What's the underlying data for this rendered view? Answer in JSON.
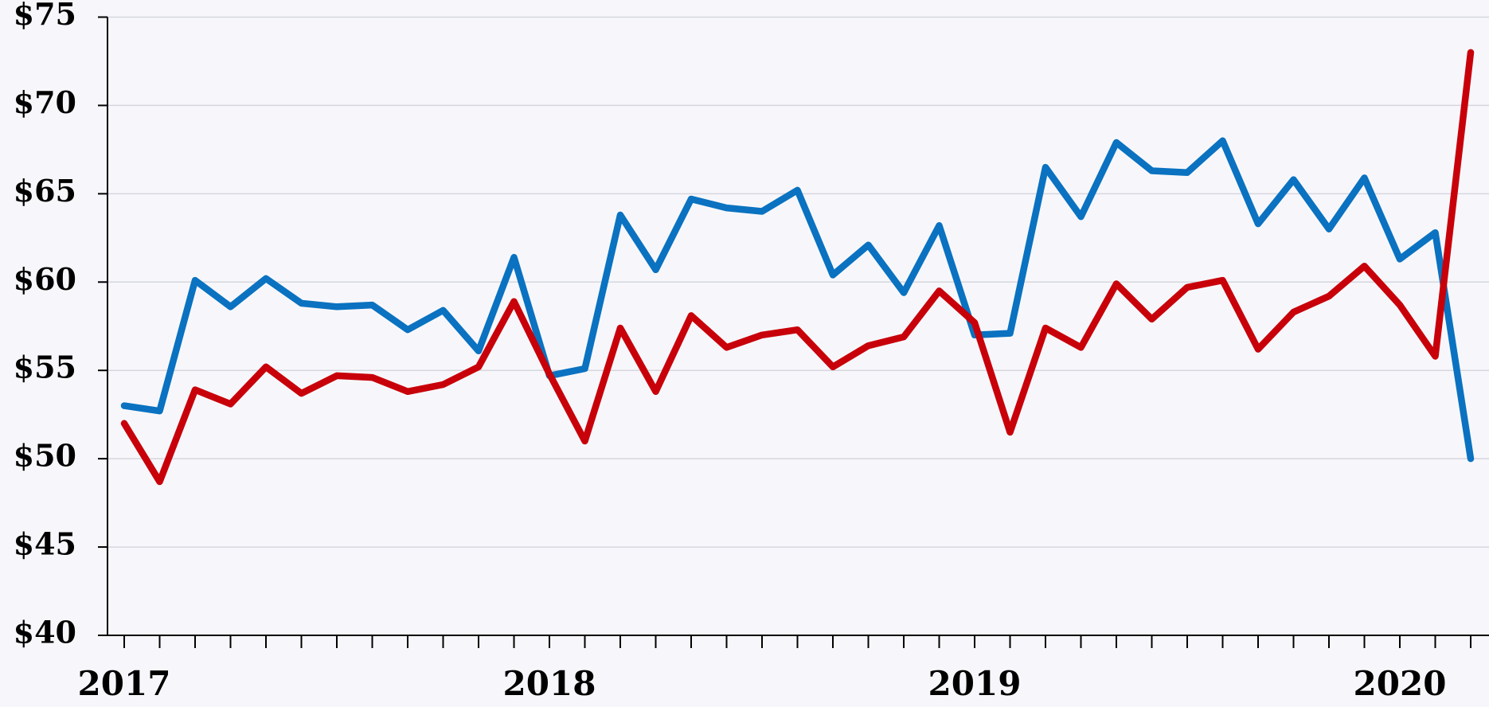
{
  "chart_data": {
    "type": "line",
    "categories": [
      "2017",
      null,
      null,
      null,
      null,
      null,
      null,
      null,
      null,
      null,
      null,
      null,
      "2018",
      null,
      null,
      null,
      null,
      null,
      null,
      null,
      null,
      null,
      null,
      null,
      "2019",
      null,
      null,
      null,
      null,
      null,
      null,
      null,
      null,
      null,
      null,
      null,
      "2020",
      null,
      null
    ],
    "series": [
      {
        "color": "#0a72c0",
        "values": [
          53.0,
          52.7,
          60.1,
          58.6,
          60.2,
          58.8,
          58.6,
          58.7,
          57.3,
          58.4,
          56.1,
          61.4,
          54.7,
          55.1,
          63.8,
          60.7,
          64.7,
          64.2,
          64.0,
          65.2,
          60.4,
          62.1,
          59.4,
          63.2,
          57.0,
          57.1,
          66.5,
          63.7,
          67.9,
          66.3,
          66.2,
          68.0,
          63.3,
          65.8,
          63.0,
          65.9,
          61.3,
          62.8,
          50.0
        ]
      },
      {
        "color": "#c8000a",
        "values": [
          52.0,
          48.7,
          53.9,
          53.1,
          55.2,
          53.7,
          54.7,
          54.6,
          53.8,
          54.2,
          55.2,
          58.9,
          54.8,
          51.0,
          57.4,
          53.8,
          58.1,
          56.3,
          57.0,
          57.3,
          55.2,
          56.4,
          56.9,
          59.5,
          57.7,
          51.5,
          57.4,
          56.3,
          59.9,
          57.9,
          59.7,
          60.1,
          56.2,
          58.3,
          59.2,
          60.9,
          58.7,
          55.8,
          73.0
        ]
      }
    ],
    "ylim": [
      40,
      75
    ],
    "yticks": [
      {
        "value": 40,
        "label": "$40"
      },
      {
        "value": 45,
        "label": "$45"
      },
      {
        "value": 50,
        "label": "$50"
      },
      {
        "value": 55,
        "label": "$55"
      },
      {
        "value": 60,
        "label": "$60"
      },
      {
        "value": 65,
        "label": "$65"
      },
      {
        "value": 70,
        "label": "$70"
      },
      {
        "value": 75,
        "label": "$75"
      }
    ],
    "grid": true
  }
}
